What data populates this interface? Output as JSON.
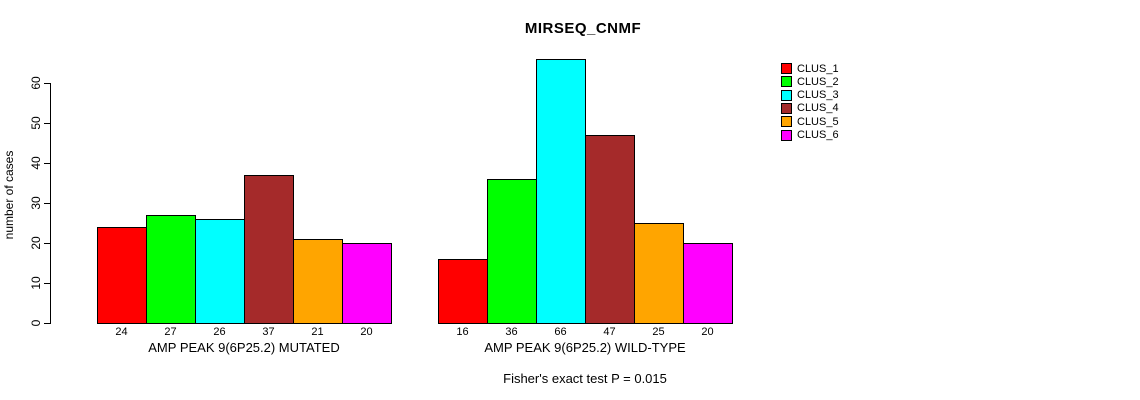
{
  "chart_data": {
    "type": "bar",
    "title": "MIRSEQ_CNMF",
    "ylabel": "number of cases",
    "xlabel": "",
    "ylim": [
      0,
      60
    ],
    "yticks": [
      0,
      10,
      20,
      30,
      40,
      50,
      60
    ],
    "grid": false,
    "legend_position": "right",
    "groups": [
      {
        "key": "mutated",
        "label": "AMP PEAK 9(6P25.2) MUTATED"
      },
      {
        "key": "wild-type",
        "label": "AMP PEAK 9(6P25.2) WILD-TYPE"
      }
    ],
    "series": [
      {
        "name": "CLUS_1",
        "color": "#FF0000",
        "values": [
          24,
          16
        ]
      },
      {
        "name": "CLUS_2",
        "color": "#00FF00",
        "values": [
          27,
          36
        ]
      },
      {
        "name": "CLUS_3",
        "color": "#00FFFF",
        "values": [
          26,
          66
        ]
      },
      {
        "name": "CLUS_4",
        "color": "#A52A2A",
        "values": [
          37,
          47
        ]
      },
      {
        "name": "CLUS_5",
        "color": "#FFA500",
        "values": [
          21,
          25
        ]
      },
      {
        "name": "CLUS_6",
        "color": "#FF00FF",
        "values": [
          20,
          20
        ]
      }
    ],
    "bar_value_labels_shown": true,
    "annotation": "Fisher's exact test P = 0.015"
  }
}
